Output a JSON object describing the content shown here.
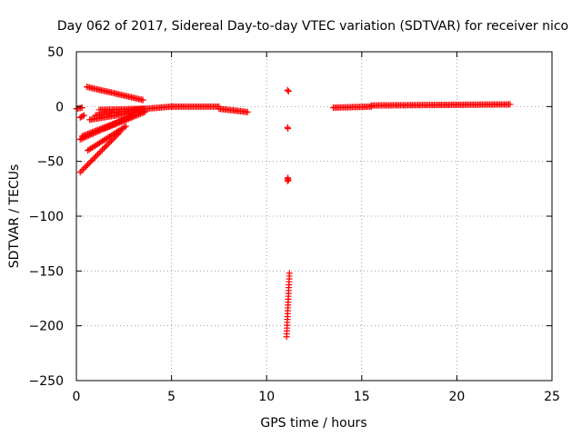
{
  "chart_data": {
    "type": "scatter",
    "title": "Day 062 of 2017, Sidereal Day-to-day VTEC variation (SDTVAR) for receiver nico",
    "xlabel": "GPS time / hours",
    "ylabel": "SDTVAR / TECUs",
    "xlim": [
      0,
      25
    ],
    "ylim": [
      -250,
      50
    ],
    "xticks": [
      0,
      5,
      10,
      15,
      20,
      25
    ],
    "yticks": [
      -250,
      -200,
      -150,
      -100,
      -50,
      0,
      50
    ],
    "grid": true,
    "marker": "+",
    "color": "#ff0000",
    "segments": [
      {
        "x": [
          0.55,
          3.5
        ],
        "y": [
          18,
          6
        ]
      },
      {
        "x": [
          1.2,
          3.6
        ],
        "y": [
          -3,
          -2
        ]
      },
      {
        "x": [
          0.7,
          3.5
        ],
        "y": [
          -12,
          -4
        ]
      },
      {
        "x": [
          1.0,
          3.5
        ],
        "y": [
          -8,
          -2
        ]
      },
      {
        "x": [
          0.2,
          3.0
        ],
        "y": [
          -30,
          -8
        ]
      },
      {
        "x": [
          0.3,
          2.5
        ],
        "y": [
          -27,
          -12
        ]
      },
      {
        "x": [
          0.2,
          2.3
        ],
        "y": [
          -60,
          -23
        ]
      },
      {
        "x": [
          0.6,
          2.6
        ],
        "y": [
          -40,
          -18
        ]
      },
      {
        "x": [
          1.5,
          3.6
        ],
        "y": [
          -20,
          -5
        ]
      },
      {
        "x": [
          0.0,
          0.3
        ],
        "y": [
          -2,
          -1
        ]
      },
      {
        "x": [
          0.2,
          0.4
        ],
        "y": [
          -10,
          -8
        ]
      },
      {
        "x": [
          3.0,
          5.0
        ],
        "y": [
          -3,
          0
        ]
      },
      {
        "x": [
          5.0,
          7.5
        ],
        "y": [
          0,
          0
        ]
      },
      {
        "x": [
          7.5,
          9.0
        ],
        "y": [
          -2,
          -5
        ]
      },
      {
        "x": [
          13.5,
          15.5
        ],
        "y": [
          -1,
          0
        ]
      },
      {
        "x": [
          15.5,
          22.8
        ],
        "y": [
          1,
          2
        ]
      }
    ],
    "points": [
      {
        "x": 11.1,
        "y": 15
      },
      {
        "x": 11.15,
        "y": 14
      },
      {
        "x": 11.1,
        "y": -19
      },
      {
        "x": 11.12,
        "y": -20
      },
      {
        "x": 11.1,
        "y": -66
      },
      {
        "x": 11.15,
        "y": -67
      },
      {
        "x": 11.1,
        "y": -68
      },
      {
        "x": 11.12,
        "y": -65
      }
    ],
    "vertical_series": {
      "x": [
        11.05,
        11.2
      ],
      "y": [
        -210,
        -152
      ]
    }
  }
}
